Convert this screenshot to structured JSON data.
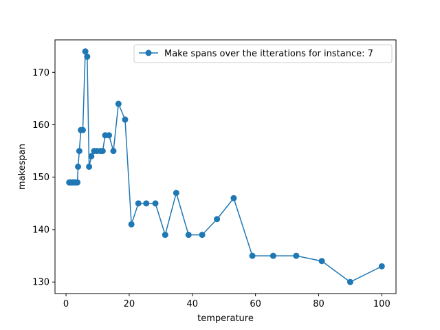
{
  "chart_data": {
    "type": "line",
    "title": "",
    "xlabel": "temperature",
    "ylabel": "makespan",
    "xlim": [
      -3.5,
      104.5
    ],
    "ylim": [
      127.8,
      176.2
    ],
    "xticks": [
      0,
      20,
      40,
      60,
      80,
      100
    ],
    "yticks": [
      130,
      140,
      150,
      160,
      170
    ],
    "grid": false,
    "legend_position": "top-right",
    "series": [
      {
        "name": "Make spans over the itterations for instance: 7",
        "color": "#1f77b4",
        "marker": "circle",
        "x": [
          1.0,
          1.3,
          1.7,
          2.1,
          2.6,
          3.1,
          3.6,
          3.8,
          4.2,
          4.7,
          5.3,
          6.1,
          6.7,
          7.3,
          8.0,
          8.9,
          9.8,
          10.9,
          11.6,
          12.4,
          13.6,
          15.0,
          16.6,
          18.7,
          20.7,
          22.9,
          25.4,
          28.3,
          31.4,
          34.9,
          38.8,
          43.1,
          47.8,
          53.1,
          59.0,
          65.6,
          72.9,
          81.0,
          90.0,
          100.0
        ],
        "y": [
          149,
          149,
          149,
          149,
          149,
          149,
          149,
          152,
          155,
          159,
          159,
          174,
          173,
          152,
          154,
          155,
          155,
          155,
          155,
          158,
          158,
          155,
          164,
          161,
          141,
          145,
          145,
          145,
          139,
          147,
          139,
          139,
          142,
          146,
          135,
          135,
          135,
          134,
          130,
          133
        ]
      }
    ]
  }
}
